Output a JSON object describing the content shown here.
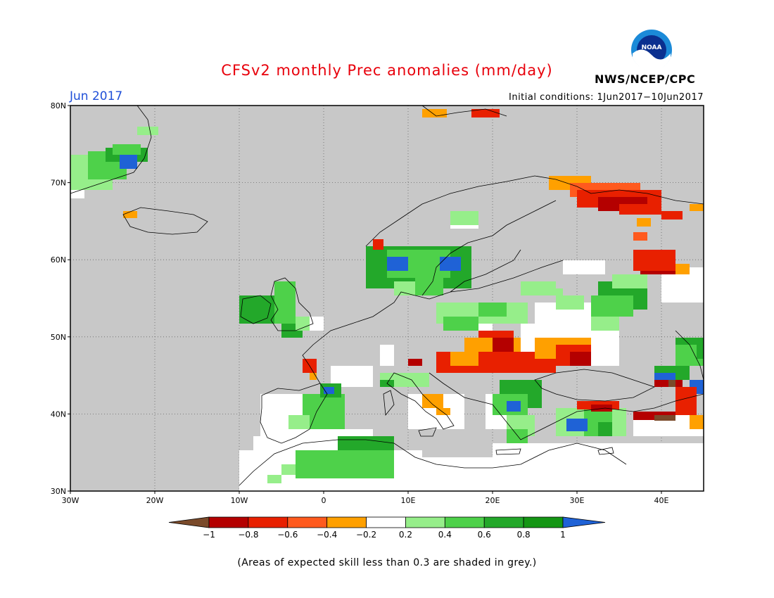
{
  "title": "CFSv2 monthly Prec anomalies (mm/day)",
  "period": "Jun 2017",
  "initial_conditions": "Initial conditions: 1Jun2017−10Jun2017",
  "agency": "NWS/NCEP/CPC",
  "logo_text": "NOAA",
  "footnote": "(Areas of expected skill less than 0.3 are shaded in grey.)",
  "map": {
    "lon_range": [
      -30,
      45
    ],
    "lat_range": [
      30,
      80
    ],
    "lon_ticks": [
      "30W",
      "20W",
      "10W",
      "0",
      "10E",
      "20E",
      "30E",
      "40E"
    ],
    "lat_ticks": [
      "30N",
      "40N",
      "50N",
      "60N",
      "70N",
      "80N"
    ],
    "grid": true,
    "background_color": "#c8c8c8"
  },
  "colorbar": {
    "labels": [
      "−1",
      "−0.8",
      "−0.6",
      "−0.4",
      "−0.2",
      "0.2",
      "0.4",
      "0.6",
      "0.8",
      "1"
    ],
    "colors": [
      "#7a4a2a",
      "#b40000",
      "#e82000",
      "#ff5a1e",
      "#ffa000",
      "#ffffff",
      "#96ee8a",
      "#4ed14a",
      "#23a82a",
      "#149614",
      "#1f62d6"
    ]
  }
}
